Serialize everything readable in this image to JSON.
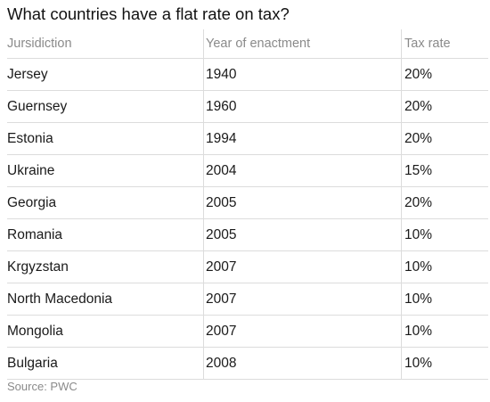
{
  "title": "What countries have a flat rate on tax?",
  "source": "Source: PWC",
  "chart_data": {
    "type": "table",
    "title": "What countries have a flat rate on tax?",
    "columns": [
      "Jursidiction",
      "Year of enactment",
      "Tax rate"
    ],
    "rows": [
      [
        "Jersey",
        "1940",
        "20%"
      ],
      [
        "Guernsey",
        "1960",
        "20%"
      ],
      [
        "Estonia",
        "1994",
        "20%"
      ],
      [
        "Ukraine",
        "2004",
        "15%"
      ],
      [
        "Georgia",
        "2005",
        "20%"
      ],
      [
        "Romania",
        "2005",
        "10%"
      ],
      [
        "Krgyzstan",
        "2007",
        "10%"
      ],
      [
        "North Macedonia",
        "2007",
        "10%"
      ],
      [
        "Mongolia",
        "2007",
        "10%"
      ],
      [
        "Bulgaria",
        "2008",
        "10%"
      ]
    ],
    "source": "Source: PWC"
  }
}
